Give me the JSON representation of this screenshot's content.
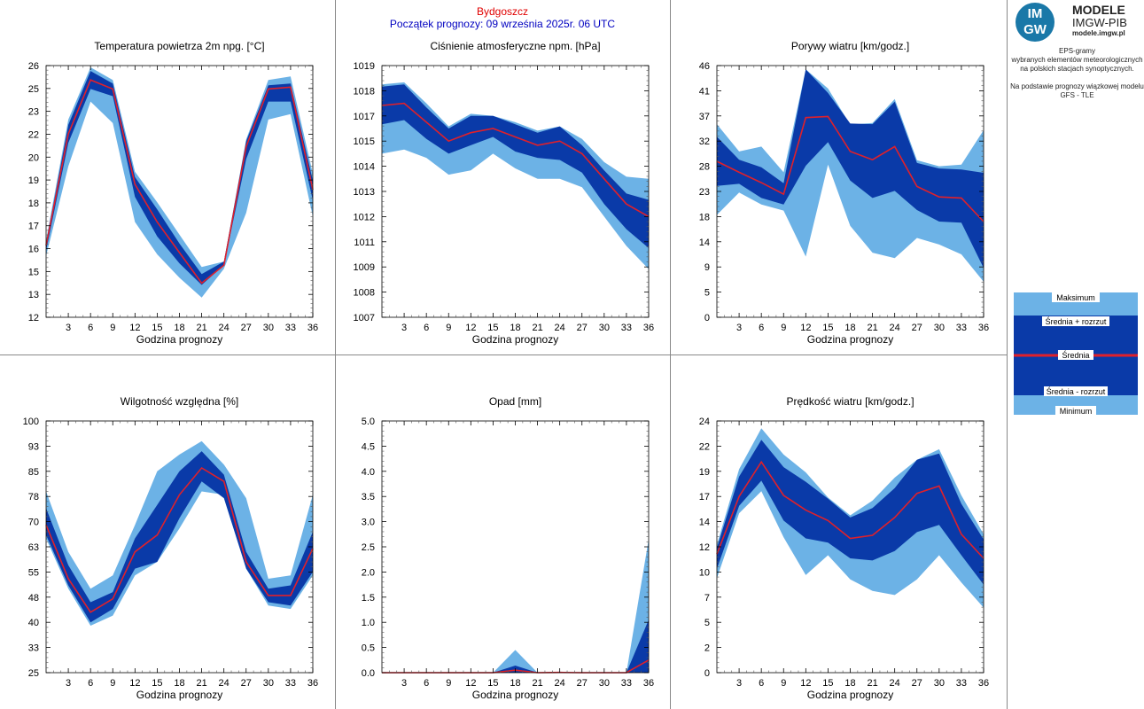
{
  "header": {
    "station": "Bydgoszcz",
    "forecast_start": "Początek prognozy: 09 września 2025r. 06 UTC"
  },
  "logo": {
    "mark_line1": "IM",
    "mark_line2": "GW",
    "title": "MODELE",
    "subtitle": "IMGW-PIB",
    "url": "modele.imgw.pl"
  },
  "side_info": {
    "line1": "EPS-gramy",
    "line2": "wybranych elementów meteorologicznych",
    "line3": "na polskich stacjach  synoptycznych.",
    "line4": "Na podstawie prognozy wiązkowej modelu",
    "line5": "GFS - TLE"
  },
  "legend": {
    "max": "Maksimum",
    "mean_plus": "Średnia + rozrzut",
    "mean": "Średnia",
    "mean_minus": "Średnia - rozrzut",
    "min": "Minimum"
  },
  "colors": {
    "outer_band": "#6cb2e6",
    "inner_band": "#0a3aa8",
    "mean_line": "#e0202a",
    "station_text": "#e00000",
    "start_text": "#0000c0"
  },
  "chart_data": [
    {
      "id": "temperature",
      "type": "area",
      "title": "Temperatura powietrza 2m npg. [°C]",
      "xlabel": "Godzina prognozy",
      "ylabel": "",
      "x": [
        0,
        3,
        6,
        9,
        12,
        15,
        18,
        21,
        24,
        27,
        30,
        33,
        36
      ],
      "x_ticks": [
        "3",
        "6",
        "9",
        "12",
        "15",
        "18",
        "21",
        "24",
        "27",
        "30",
        "33",
        "36"
      ],
      "ylim": [
        12,
        26
      ],
      "y_ticks": [
        "12",
        "13",
        "15",
        "16",
        "17",
        "18",
        "19",
        "20",
        "22",
        "23",
        "25",
        "26"
      ],
      "y_decimals": 0,
      "series": {
        "max": [
          16.3,
          23.0,
          25.9,
          25.2,
          20.1,
          18.4,
          16.6,
          14.8,
          15.1,
          21.9,
          25.2,
          25.4,
          20.0
        ],
        "upper": [
          16.1,
          22.7,
          25.7,
          25.0,
          19.8,
          18.0,
          16.1,
          14.4,
          15.1,
          21.8,
          24.9,
          25.0,
          19.6
        ],
        "mean": [
          16.0,
          22.2,
          25.2,
          24.7,
          19.4,
          17.3,
          15.6,
          13.9,
          14.9,
          21.5,
          24.7,
          24.8,
          19.1
        ],
        "lower": [
          15.7,
          21.7,
          24.7,
          24.3,
          18.7,
          16.5,
          15.0,
          13.8,
          14.9,
          20.8,
          24.0,
          24.0,
          18.5
        ],
        "min": [
          15.4,
          20.4,
          24.0,
          22.8,
          17.3,
          15.5,
          14.2,
          13.1,
          14.7,
          17.8,
          23.0,
          23.3,
          17.6
        ]
      }
    },
    {
      "id": "pressure",
      "type": "area",
      "title": "Ciśnienie atmosferyczne npm. [hPa]",
      "xlabel": "Godzina prognozy",
      "ylabel": "",
      "x": [
        0,
        3,
        6,
        9,
        12,
        15,
        18,
        21,
        24,
        27,
        30,
        33,
        36
      ],
      "x_ticks": [
        "3",
        "6",
        "9",
        "12",
        "15",
        "18",
        "21",
        "24",
        "27",
        "30",
        "33",
        "36"
      ],
      "ylim": [
        1007,
        1019
      ],
      "y_ticks": [
        "1007",
        "1008",
        "1009",
        "1011",
        "1012",
        "1013",
        "1014",
        "1015",
        "1017",
        "1018",
        "1019"
      ],
      "y_decimals": 0,
      "series": {
        "max": [
          1018.1,
          1018.2,
          1017.2,
          1016.1,
          1016.7,
          1016.6,
          1016.3,
          1015.9,
          1016.1,
          1015.5,
          1014.4,
          1013.7,
          1013.6
        ],
        "upper": [
          1018.0,
          1018.1,
          1017.0,
          1016.0,
          1016.6,
          1016.6,
          1016.2,
          1015.8,
          1016.1,
          1015.2,
          1014.0,
          1012.9,
          1012.6
        ],
        "mean": [
          1017.1,
          1017.2,
          1016.3,
          1015.4,
          1015.8,
          1016.0,
          1015.6,
          1015.2,
          1015.4,
          1014.8,
          1013.6,
          1012.4,
          1011.8
        ],
        "lower": [
          1016.2,
          1016.4,
          1015.5,
          1014.8,
          1015.2,
          1015.6,
          1014.9,
          1014.6,
          1014.5,
          1013.9,
          1012.4,
          1011.2,
          1010.3
        ],
        "min": [
          1014.8,
          1015.0,
          1014.6,
          1013.8,
          1014.0,
          1014.8,
          1014.1,
          1013.6,
          1013.6,
          1013.2,
          1011.8,
          1010.4,
          1009.3
        ]
      }
    },
    {
      "id": "gusts",
      "type": "area",
      "title": "Porywy wiatru [km/godz.]",
      "xlabel": "Godzina prognozy",
      "ylabel": "",
      "x": [
        0,
        3,
        6,
        9,
        12,
        15,
        18,
        21,
        24,
        27,
        30,
        33,
        36
      ],
      "x_ticks": [
        "3",
        "6",
        "9",
        "12",
        "15",
        "18",
        "21",
        "24",
        "27",
        "30",
        "33",
        "36"
      ],
      "ylim": [
        0,
        46
      ],
      "y_ticks": [
        "0",
        "5",
        "9",
        "14",
        "18",
        "23",
        "28",
        "32",
        "37",
        "41",
        "46"
      ],
      "y_decimals": 0,
      "series": {
        "max": [
          35.3,
          30.3,
          31.2,
          26.5,
          45.3,
          41.8,
          35.2,
          35.5,
          39.9,
          28.7,
          27.6,
          27.9,
          34.2
        ],
        "upper": [
          33.0,
          28.8,
          27.4,
          24.5,
          45.3,
          41.0,
          35.4,
          35.3,
          39.4,
          28.2,
          27.2,
          27.0,
          26.4
        ],
        "mean": [
          28.5,
          26.5,
          24.6,
          22.5,
          36.5,
          36.7,
          30.3,
          28.8,
          31.2,
          23.9,
          22.0,
          21.8,
          17.5
        ],
        "lower": [
          24.0,
          24.4,
          21.8,
          20.6,
          27.7,
          32.0,
          25.0,
          21.8,
          23.1,
          19.6,
          17.5,
          17.3,
          9.0
        ],
        "min": [
          18.7,
          22.8,
          20.6,
          19.5,
          11.1,
          27.9,
          16.7,
          11.8,
          10.8,
          14.5,
          13.3,
          11.5,
          6.5
        ]
      }
    },
    {
      "id": "humidity",
      "type": "area",
      "title": "Wilgotność względna [%]",
      "xlabel": "Godzina prognozy",
      "ylabel": "",
      "x": [
        0,
        3,
        6,
        9,
        12,
        15,
        18,
        21,
        24,
        27,
        30,
        33,
        36
      ],
      "x_ticks": [
        "3",
        "6",
        "9",
        "12",
        "15",
        "18",
        "21",
        "24",
        "27",
        "30",
        "33",
        "36"
      ],
      "ylim": [
        25,
        100
      ],
      "y_ticks": [
        "25",
        "33",
        "40",
        "48",
        "55",
        "63",
        "70",
        "78",
        "85",
        "93",
        "100"
      ],
      "y_decimals": 0,
      "series": {
        "max": [
          79,
          61,
          50,
          54,
          69,
          85,
          90,
          94,
          87,
          77,
          53,
          54,
          78
        ],
        "upper": [
          74,
          57,
          46,
          49,
          65,
          75,
          85,
          91,
          84,
          61,
          50,
          51,
          67
        ],
        "mean": [
          69,
          53,
          43,
          47,
          61,
          66,
          78,
          86,
          82,
          58,
          48,
          48,
          62
        ],
        "lower": [
          66,
          51,
          40,
          44,
          56,
          58,
          71,
          82,
          77,
          56,
          46,
          45,
          55
        ],
        "min": [
          65,
          50,
          39,
          42,
          54,
          58,
          68,
          79,
          78,
          56,
          45,
          44,
          54
        ]
      }
    },
    {
      "id": "precipitation",
      "type": "area",
      "title": "Opad [mm]",
      "xlabel": "Godzina prognozy",
      "ylabel": "",
      "x": [
        0,
        3,
        6,
        9,
        12,
        15,
        18,
        21,
        24,
        27,
        30,
        33,
        36
      ],
      "x_ticks": [
        "3",
        "6",
        "9",
        "12",
        "15",
        "18",
        "21",
        "24",
        "27",
        "30",
        "33",
        "36"
      ],
      "ylim": [
        0,
        5
      ],
      "y_ticks": [
        "0.0",
        "0.5",
        "1.0",
        "1.5",
        "2.0",
        "2.5",
        "3.0",
        "3.5",
        "4.0",
        "4.5",
        "5.0"
      ],
      "y_decimals": 1,
      "series": {
        "max": [
          0,
          0,
          0,
          0,
          0,
          0,
          0.45,
          0,
          0.02,
          0,
          0,
          0,
          2.65
        ],
        "upper": [
          0,
          0,
          0,
          0,
          0,
          0,
          0.14,
          0,
          0.01,
          0,
          0,
          0,
          1.05
        ],
        "mean": [
          0,
          0,
          0,
          0,
          0,
          0,
          0.05,
          0,
          0.005,
          0,
          0,
          0,
          0.25
        ],
        "lower": [
          0,
          0,
          0,
          0,
          0,
          0,
          0,
          0,
          0,
          0,
          0,
          0,
          0
        ],
        "min": [
          0,
          0,
          0,
          0,
          0,
          0,
          0,
          0,
          0,
          0,
          0,
          0,
          0
        ]
      }
    },
    {
      "id": "wind_speed",
      "type": "area",
      "title": "Prędkość wiatru [km/godz.]",
      "xlabel": "Godzina prognozy",
      "ylabel": "",
      "x": [
        0,
        3,
        6,
        9,
        12,
        15,
        18,
        21,
        24,
        27,
        30,
        33,
        36
      ],
      "x_ticks": [
        "3",
        "6",
        "9",
        "12",
        "15",
        "18",
        "21",
        "24",
        "27",
        "30",
        "33",
        "36"
      ],
      "ylim": [
        0,
        24
      ],
      "y_ticks": [
        "0",
        "2",
        "5",
        "7",
        "10",
        "12",
        "14",
        "17",
        "19",
        "22",
        "24"
      ],
      "y_decimals": 0,
      "series": {
        "max": [
          12.2,
          19.4,
          23.3,
          20.8,
          19.1,
          16.7,
          15.0,
          16.4,
          18.6,
          20.3,
          21.3,
          16.9,
          13.2
        ],
        "upper": [
          11.9,
          18.7,
          22.2,
          19.6,
          18.2,
          16.6,
          14.8,
          15.7,
          17.6,
          20.3,
          20.9,
          16.1,
          12.7
        ],
        "mean": [
          11.3,
          16.8,
          20.1,
          16.9,
          15.5,
          14.5,
          12.8,
          13.1,
          14.8,
          17.1,
          17.8,
          13.2,
          10.9
        ],
        "lower": [
          9.9,
          15.9,
          18.3,
          14.5,
          12.8,
          12.4,
          10.9,
          10.7,
          11.6,
          13.4,
          14.1,
          11.2,
          8.4
        ],
        "min": [
          9.0,
          15.2,
          17.3,
          12.9,
          9.3,
          11.2,
          8.9,
          7.8,
          7.4,
          8.9,
          11.2,
          8.6,
          6.2
        ]
      }
    }
  ]
}
